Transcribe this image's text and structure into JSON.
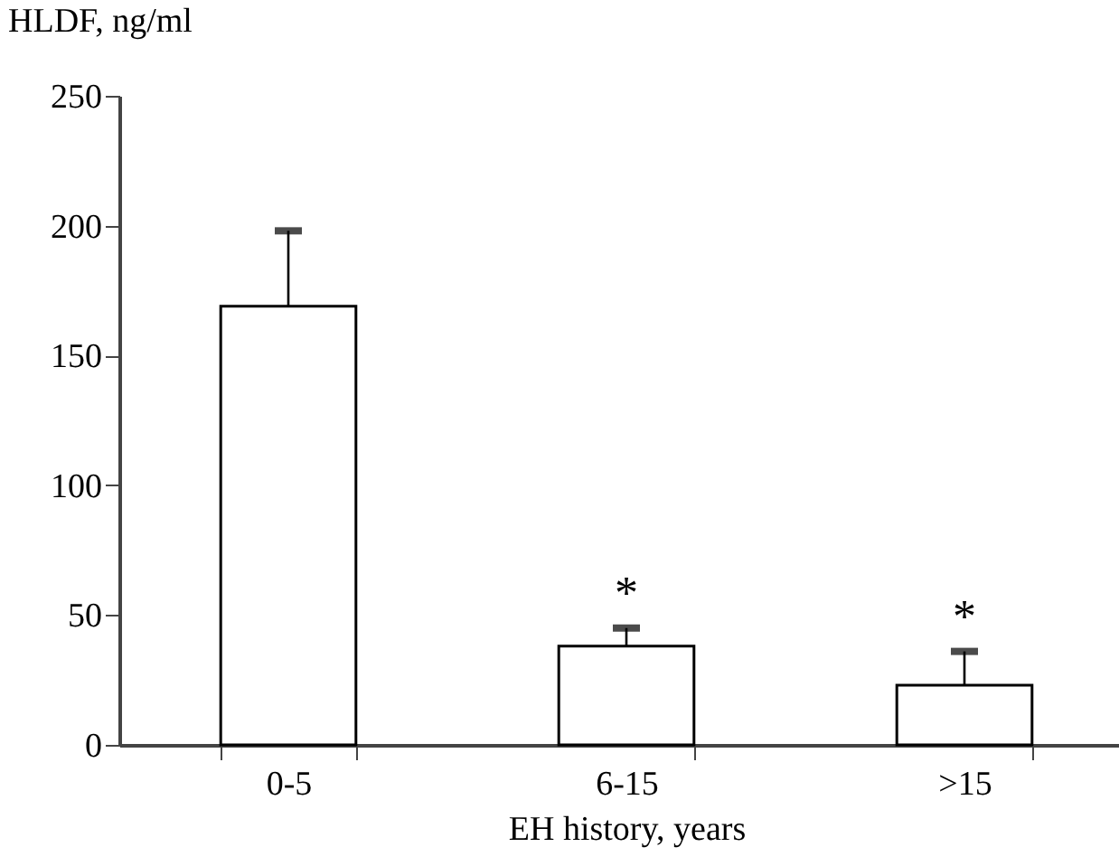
{
  "chart_data": {
    "type": "bar",
    "xlabel": "EH history, years",
    "ylabel": "HLDF, ng/ml",
    "categories": [
      "0-5",
      "6-15",
      ">15"
    ],
    "values": [
      169,
      38,
      23
    ],
    "errors": [
      [
        169,
        198
      ],
      [
        38,
        45
      ],
      [
        23,
        36
      ]
    ],
    "color": "#ffffff",
    "ylim": [
      0,
      250
    ],
    "yticks": [
      0,
      50,
      100,
      150,
      200,
      250
    ],
    "grid": false,
    "annotations": [
      {
        "text": "*",
        "x": "6-15",
        "y": 45
      },
      {
        "text": "*",
        "x": ">15",
        "y": 36
      }
    ]
  }
}
